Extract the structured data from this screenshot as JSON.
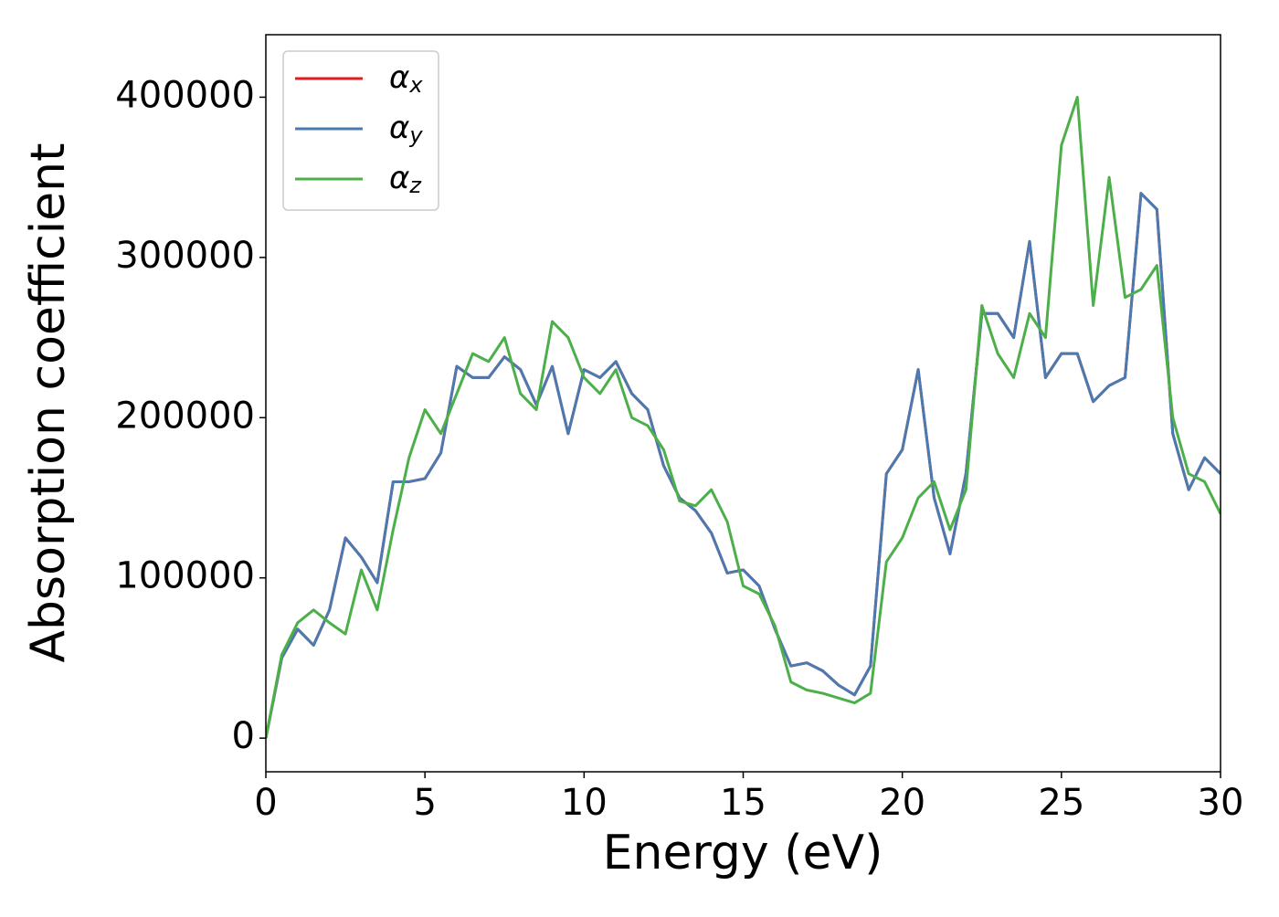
{
  "chart_data": {
    "type": "line",
    "xlabel": "Energy (eV)",
    "ylabel": "Absorption coefficient",
    "x": [
      0,
      0.5,
      1,
      1.5,
      2,
      2.5,
      3,
      3.5,
      4,
      4.5,
      5,
      5.5,
      6,
      6.5,
      7,
      7.5,
      8,
      8.5,
      9,
      9.5,
      10,
      10.5,
      11,
      11.5,
      12,
      12.5,
      13,
      13.5,
      14,
      14.5,
      15,
      15.5,
      16,
      16.5,
      17,
      17.5,
      18,
      18.5,
      19,
      19.5,
      20,
      20.5,
      21,
      21.5,
      22,
      22.5,
      23,
      23.5,
      24,
      24.5,
      25,
      25.5,
      26,
      26.5,
      27,
      27.5,
      28,
      28.5,
      29,
      29.5,
      30
    ],
    "series": [
      {
        "name": "αx",
        "color": "#e41a1c",
        "values": [
          0,
          50000,
          68000,
          58000,
          80000,
          125000,
          113000,
          97000,
          160000,
          160000,
          162000,
          178000,
          232000,
          225000,
          225000,
          238000,
          230000,
          208000,
          232000,
          190000,
          230000,
          225000,
          235000,
          215000,
          205000,
          170000,
          150000,
          142000,
          128000,
          103000,
          105000,
          95000,
          68000,
          45000,
          47000,
          42000,
          33000,
          27000,
          45000,
          165000,
          180000,
          230000,
          150000,
          115000,
          165000,
          265000,
          265000,
          250000,
          310000,
          225000,
          240000,
          240000,
          210000,
          220000,
          225000,
          340000,
          330000,
          190000,
          155000,
          175000,
          165000
        ]
      },
      {
        "name": "αy",
        "color": "#4a7ab0",
        "values": [
          0,
          50000,
          68000,
          58000,
          80000,
          125000,
          113000,
          97000,
          160000,
          160000,
          162000,
          178000,
          232000,
          225000,
          225000,
          238000,
          230000,
          208000,
          232000,
          190000,
          230000,
          225000,
          235000,
          215000,
          205000,
          170000,
          150000,
          142000,
          128000,
          103000,
          105000,
          95000,
          68000,
          45000,
          47000,
          42000,
          33000,
          27000,
          45000,
          165000,
          180000,
          230000,
          150000,
          115000,
          165000,
          265000,
          265000,
          250000,
          310000,
          225000,
          240000,
          240000,
          210000,
          220000,
          225000,
          340000,
          330000,
          190000,
          155000,
          175000,
          165000
        ]
      },
      {
        "name": "αz",
        "color": "#4daf4a",
        "values": [
          0,
          52000,
          72000,
          80000,
          72000,
          65000,
          105000,
          80000,
          130000,
          175000,
          205000,
          190000,
          215000,
          240000,
          235000,
          250000,
          215000,
          205000,
          260000,
          250000,
          225000,
          215000,
          230000,
          200000,
          195000,
          180000,
          148000,
          145000,
          155000,
          135000,
          95000,
          90000,
          70000,
          35000,
          30000,
          28000,
          25000,
          22000,
          28000,
          110000,
          125000,
          150000,
          160000,
          130000,
          155000,
          270000,
          240000,
          225000,
          265000,
          250000,
          370000,
          400000,
          270000,
          350000,
          275000,
          280000,
          295000,
          200000,
          165000,
          160000,
          140000
        ]
      }
    ],
    "xlim": [
      0,
      30
    ],
    "xticks": [
      0,
      5,
      10,
      15,
      20,
      25,
      30
    ],
    "ylim": [
      -21000,
      439000
    ],
    "yticks": [
      0,
      100000,
      200000,
      300000,
      400000
    ],
    "grid": false,
    "legend": "upper left"
  }
}
